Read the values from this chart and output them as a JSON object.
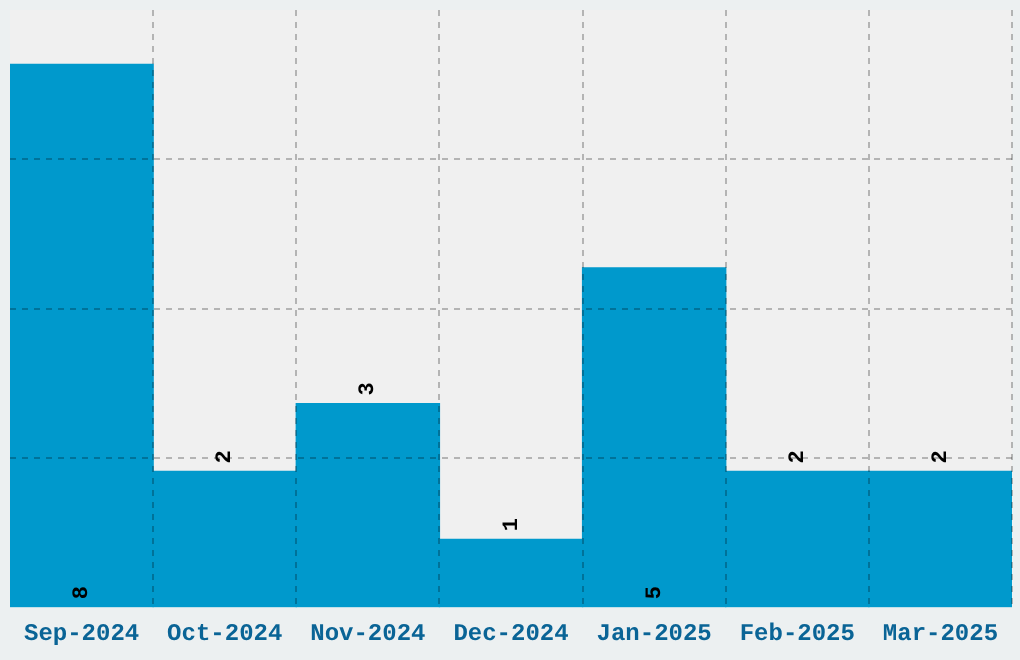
{
  "chart_data": {
    "type": "bar",
    "categories": [
      "Sep-2024",
      "Oct-2024",
      "Nov-2024",
      "Dec-2024",
      "Jan-2025",
      "Feb-2025",
      "Mar-2025"
    ],
    "values": [
      8,
      2,
      3,
      1,
      5,
      2,
      2
    ],
    "color": "#0099cc",
    "data_labels": true,
    "ylim": [
      0,
      8.8
    ],
    "yticks": [
      {
        "value": 2.2,
        "label": null
      },
      {
        "value": 4.4,
        "label": null
      },
      {
        "value": 6.6,
        "label": null
      }
    ],
    "grid": true,
    "tick_labels": "x",
    "legend": false
  }
}
